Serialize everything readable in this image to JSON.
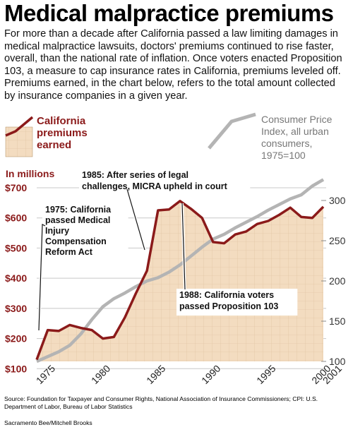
{
  "title": "Medical malpractice premiums",
  "intro": "For more than a decade after California passed a law limiting damages in medical malpractice lawsuits, doctors' premiums continued to rise faster, overall, than the national rate of inflation. Once voters enacted Proposition 103, a measure to cap insurance rates in California, premiums leveled off. Premiums earned, in the chart below, refers to the total amount collected by insurance companies in a given year.",
  "source": "Source: Foundation for Taxpayer and Consumer Rights, National Association of Insurance Commissioners; CPI: U.S. Department of Labor, Bureau of Labor Statistics",
  "credit": "Sacramento Bee/Mitchell Brooks",
  "colors": {
    "premiums_line": "#8b1a1a",
    "premiums_fill": "#f3dcc0",
    "cpi_line": "#b4b4b4",
    "grid": "#c8c8c8"
  },
  "chart_data": {
    "type": "line",
    "x": [
      1975,
      1976,
      1977,
      1978,
      1979,
      1980,
      1981,
      1982,
      1983,
      1984,
      1985,
      1986,
      1987,
      1988,
      1989,
      1990,
      1991,
      1992,
      1993,
      1994,
      1995,
      1996,
      1997,
      1998,
      1999,
      2000,
      2001
    ],
    "series": [
      {
        "name": "California premiums earned",
        "axis": "left",
        "unit": "In millions",
        "values": [
          130,
          228,
          225,
          245,
          235,
          228,
          200,
          205,
          270,
          350,
          425,
          625,
          628,
          656,
          630,
          600,
          520,
          516,
          545,
          555,
          580,
          590,
          610,
          634,
          603,
          600,
          637
        ]
      },
      {
        "name": "Consumer Price Index, all urban consumers, 1975=100",
        "axis": "right",
        "values": [
          100,
          106,
          112,
          120,
          134,
          152,
          168,
          178,
          185,
          193,
          200,
          204,
          211,
          220,
          231,
          242,
          252,
          258,
          266,
          273,
          280,
          288,
          295,
          302,
          307,
          318,
          326
        ]
      }
    ],
    "y_left": {
      "label": "In millions",
      "ticks": [
        "$100",
        "$200",
        "$300",
        "$400",
        "$500",
        "$600",
        "$700"
      ],
      "tick_values": [
        100,
        200,
        300,
        400,
        500,
        600,
        700
      ],
      "range": [
        50,
        750
      ]
    },
    "y_right": {
      "ticks": [
        "100",
        "150",
        "200",
        "250",
        "300"
      ],
      "tick_values": [
        100,
        150,
        200,
        250,
        300
      ],
      "range": [
        100,
        330
      ]
    },
    "x_ticks": [
      "1975",
      "1980",
      "1985",
      "1990",
      "1995",
      "2000",
      "2001"
    ],
    "x_tick_values": [
      1975,
      1980,
      1985,
      1990,
      1995,
      2000,
      2001
    ],
    "legend": {
      "premiums": [
        "California",
        "premiums",
        "earned"
      ],
      "cpi": [
        "Consumer Price",
        "Index, all urban",
        "consumers,",
        "1975=100"
      ]
    },
    "annotations": [
      {
        "year": 1975,
        "lines": [
          "1975: California",
          "passed Medical",
          "Injury",
          "Compensation",
          "Reform Act"
        ]
      },
      {
        "year": 1985,
        "lines": [
          "1985: After series of legal",
          "challenges, MICRA upheld in court"
        ]
      },
      {
        "year": 1988,
        "lines": [
          "1988: California voters",
          "passed Proposition 103"
        ]
      }
    ]
  }
}
